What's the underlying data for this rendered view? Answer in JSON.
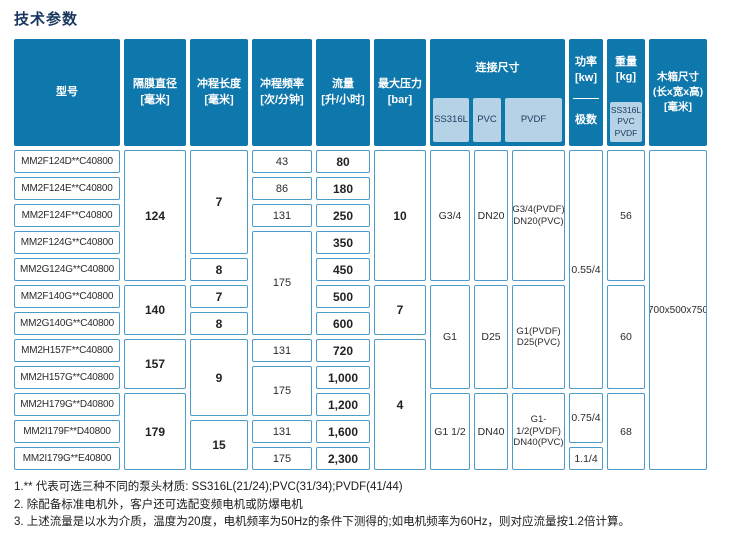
{
  "title": "技术参数",
  "colors": {
    "header_blue": "#0E77AC",
    "subheader_lightblue": "#B5D2E6",
    "cell_border_blue": "#4D9BC8",
    "title_navy": "#17375E"
  },
  "table": {
    "headers": {
      "model": "型号",
      "diaphragm": "隔膜直径\n[毫米]",
      "stroke_length": "冲程长度\n[毫米]",
      "stroke_freq": "冲程频率\n[次/分钟]",
      "flow": "流量\n[升/小时]",
      "max_pressure": "最大压力\n[bar]",
      "connection": "连接尺寸",
      "connection_subs": [
        "SS316L",
        "PVC",
        "PVDF"
      ],
      "power": "功率\n[kw]",
      "power_sub": "极数",
      "weight": "重量\n[kg]",
      "weight_sub": "SS316L\nPVC\nPVDF",
      "box": "木箱尺寸\n(长x宽x高)\n[毫米]"
    },
    "cells": [
      {
        "col": 1,
        "row": 1,
        "text": "MM2F124D**C40800"
      },
      {
        "col": 1,
        "row": 2,
        "text": "MM2F124E**C40800"
      },
      {
        "col": 1,
        "row": 3,
        "text": "MM2F124F**C40800"
      },
      {
        "col": 1,
        "row": 4,
        "text": "MM2F124G**C40800"
      },
      {
        "col": 1,
        "row": 5,
        "text": "MM2G124G**C40800"
      },
      {
        "col": 1,
        "row": 6,
        "text": "MM2F140G**C40800"
      },
      {
        "col": 1,
        "row": 7,
        "text": "MM2G140G**C40800"
      },
      {
        "col": 1,
        "row": 8,
        "text": "MM2H157F**C40800"
      },
      {
        "col": 1,
        "row": 9,
        "text": "MM2H157G**C40800"
      },
      {
        "col": 1,
        "row": 10,
        "text": "MM2H179G**D40800"
      },
      {
        "col": 1,
        "row": 11,
        "text": "MM2I179F**D40800"
      },
      {
        "col": 1,
        "row": 12,
        "text": "MM2I179G**E40800"
      },
      {
        "col": 2,
        "row": 1,
        "span": 5,
        "text": "124"
      },
      {
        "col": 2,
        "row": 6,
        "span": 2,
        "text": "140"
      },
      {
        "col": 2,
        "row": 8,
        "span": 2,
        "text": "157"
      },
      {
        "col": 2,
        "row": 10,
        "span": 3,
        "text": "179"
      },
      {
        "col": 3,
        "row": 1,
        "span": 4,
        "text": "7"
      },
      {
        "col": 3,
        "row": 5,
        "text": "8"
      },
      {
        "col": 3,
        "row": 6,
        "text": "7"
      },
      {
        "col": 3,
        "row": 7,
        "text": "8"
      },
      {
        "col": 3,
        "row": 8,
        "span": 3,
        "text": "9"
      },
      {
        "col": 3,
        "row": 11,
        "span": 2,
        "text": "15"
      },
      {
        "col": 4,
        "row": 1,
        "text": "43"
      },
      {
        "col": 4,
        "row": 2,
        "text": "86"
      },
      {
        "col": 4,
        "row": 3,
        "text": "131"
      },
      {
        "col": 4,
        "row": 4,
        "span": 4,
        "text": "175"
      },
      {
        "col": 4,
        "row": 8,
        "text": "131"
      },
      {
        "col": 4,
        "row": 9,
        "span": 2,
        "text": "175"
      },
      {
        "col": 4,
        "row": 11,
        "text": "131"
      },
      {
        "col": 4,
        "row": 12,
        "text": "175"
      },
      {
        "col": 5,
        "row": 1,
        "text": "80"
      },
      {
        "col": 5,
        "row": 2,
        "text": "180"
      },
      {
        "col": 5,
        "row": 3,
        "text": "250"
      },
      {
        "col": 5,
        "row": 4,
        "text": "350"
      },
      {
        "col": 5,
        "row": 5,
        "text": "450"
      },
      {
        "col": 5,
        "row": 6,
        "text": "500"
      },
      {
        "col": 5,
        "row": 7,
        "text": "600"
      },
      {
        "col": 5,
        "row": 8,
        "text": "720"
      },
      {
        "col": 5,
        "row": 9,
        "text": "1,000"
      },
      {
        "col": 5,
        "row": 10,
        "text": "1,200"
      },
      {
        "col": 5,
        "row": 11,
        "text": "1,600"
      },
      {
        "col": 5,
        "row": 12,
        "text": "2,300"
      },
      {
        "col": 6,
        "row": 1,
        "span": 5,
        "text": "10"
      },
      {
        "col": 6,
        "row": 6,
        "span": 2,
        "text": "7"
      },
      {
        "col": 6,
        "row": 8,
        "span": 5,
        "text": "4"
      },
      {
        "col": 7,
        "row": 1,
        "span": 5,
        "text": "G3/4"
      },
      {
        "col": 7,
        "row": 6,
        "span": 4,
        "text": "G1"
      },
      {
        "col": 7,
        "row": 10,
        "span": 3,
        "text": "G1 1/2"
      },
      {
        "col": 8,
        "row": 1,
        "span": 5,
        "text": "DN20"
      },
      {
        "col": 8,
        "row": 6,
        "span": 4,
        "text": "D25"
      },
      {
        "col": 8,
        "row": 10,
        "span": 3,
        "text": "DN40"
      },
      {
        "col": 9,
        "row": 1,
        "span": 5,
        "text": "G3/4(PVDF)\nDN20(PVC)"
      },
      {
        "col": 9,
        "row": 6,
        "span": 4,
        "text": "G1(PVDF)\nD25(PVC)"
      },
      {
        "col": 9,
        "row": 10,
        "span": 3,
        "text": "G1-1/2(PVDF)\nDN40(PVC)"
      },
      {
        "col": 10,
        "row": 1,
        "span": 9,
        "text": "0.55/4"
      },
      {
        "col": 10,
        "row": 10,
        "span": 2,
        "text": "0.75/4"
      },
      {
        "col": 10,
        "row": 12,
        "text": "1.1/4"
      },
      {
        "col": 11,
        "row": 1,
        "span": 5,
        "text": "56"
      },
      {
        "col": 11,
        "row": 6,
        "span": 4,
        "text": "60"
      },
      {
        "col": 11,
        "row": 10,
        "span": 3,
        "text": "68"
      },
      {
        "col": 12,
        "row": 1,
        "span": 12,
        "text": "700x500x750"
      }
    ]
  },
  "notes": [
    "1.** 代表可选三种不同的泵头材质: SS316L(21/24);PVC(31/34);PVDF(41/44)",
    "2. 除配备标准电机外，客户还可选配变频电机或防爆电机",
    "3. 上述流量是以水为介质，温度为20度，电机频率为50Hz的条件下测得的;如电机频率为60Hz，则对应流量按1.2倍计算。"
  ]
}
